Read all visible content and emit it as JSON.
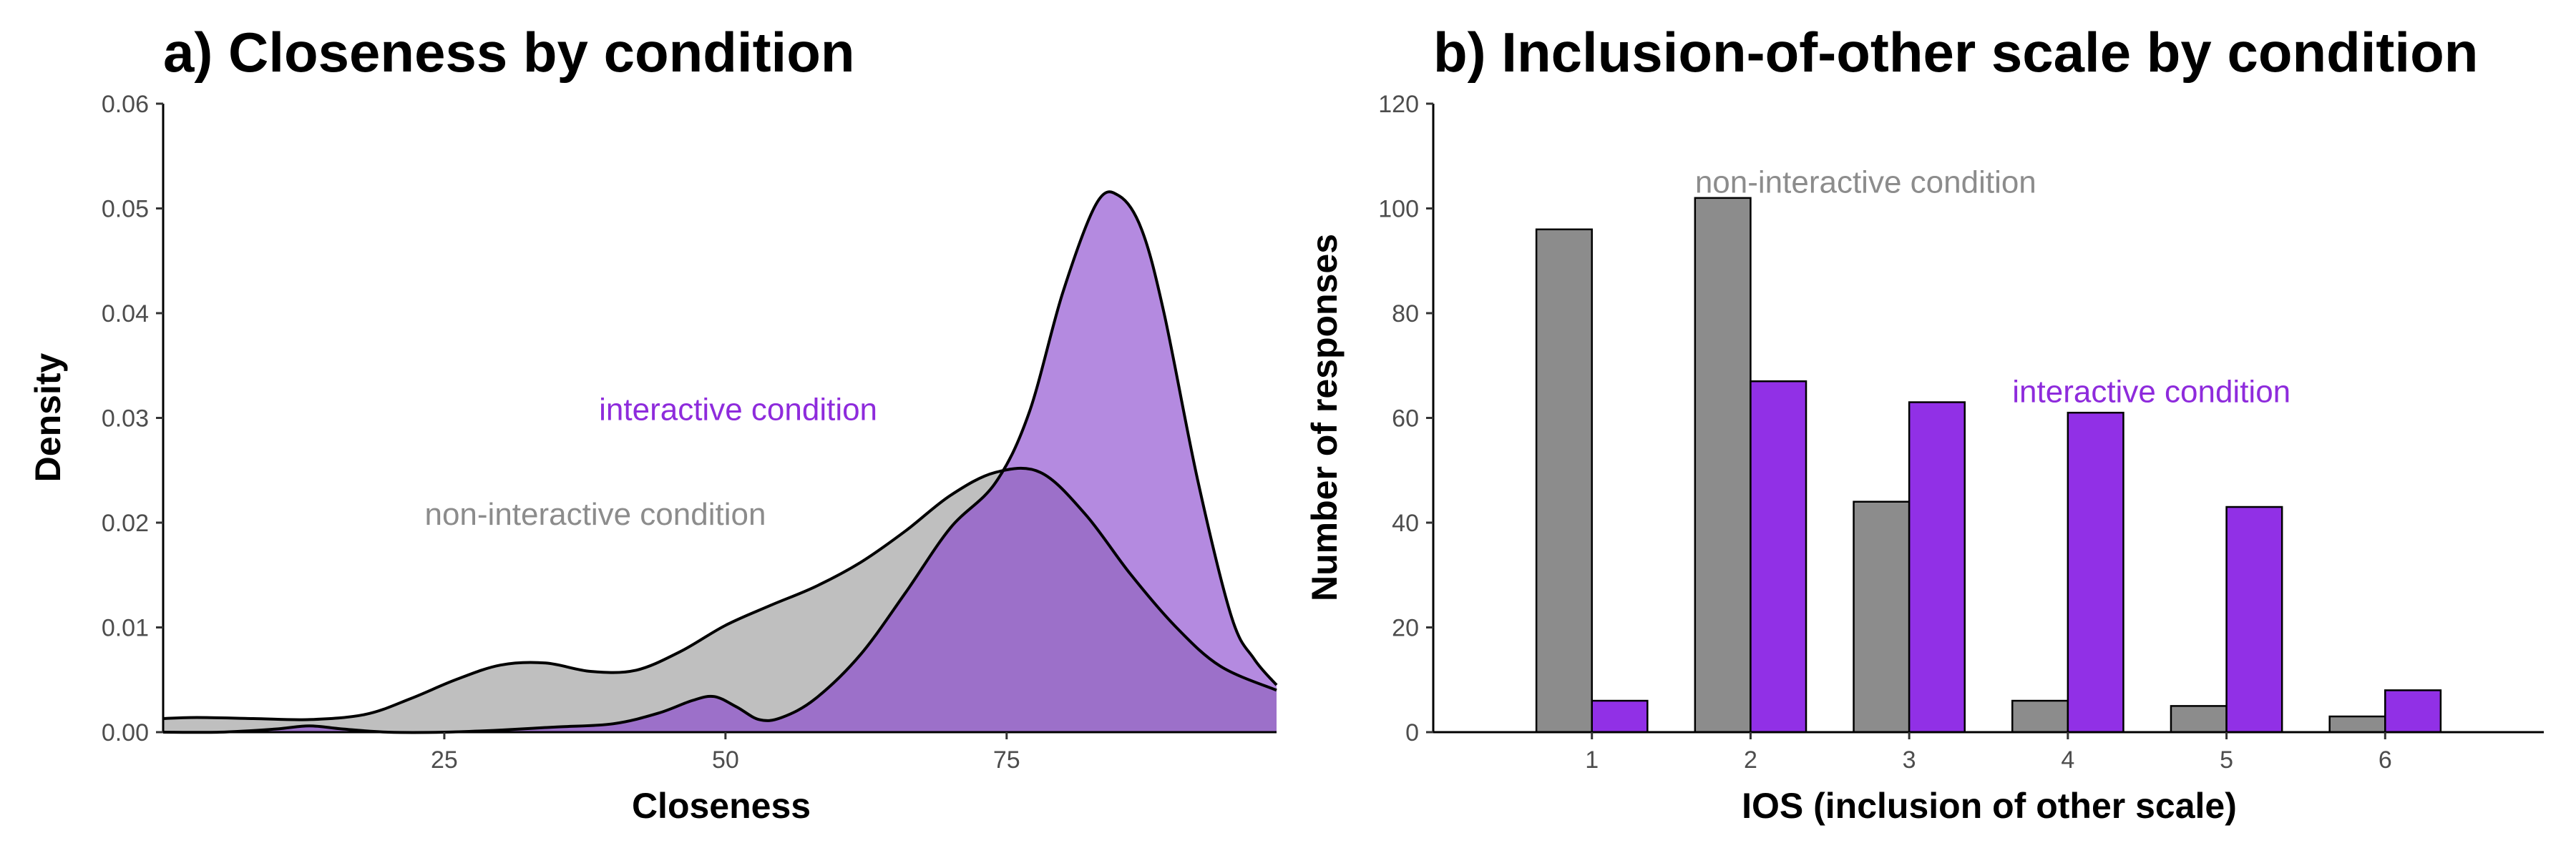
{
  "colors": {
    "non_interactive": "#8c8c8c",
    "non_interactive_fill_density": "#bfbfbf",
    "non_interactive_label": "#8c8c8c",
    "interactive": "#9130e6",
    "interactive_fill_density": "#b48ae0",
    "overlap_fill": "#9c70c9",
    "interactive_label": "#8e2bdc"
  },
  "chart_data": [
    {
      "type": "area",
      "title": "a) Closeness by condition",
      "xlabel": "Closeness",
      "ylabel": "Density",
      "xlim": [
        0,
        99
      ],
      "ylim": [
        0,
        0.06
      ],
      "xticks": [
        "25",
        "50",
        "75"
      ],
      "xtick_values": [
        25,
        50,
        75
      ],
      "yticks": [
        "0.00",
        "0.01",
        "0.02",
        "0.03",
        "0.04",
        "0.05",
        "0.06"
      ],
      "ytick_values": [
        0,
        0.01,
        0.02,
        0.03,
        0.04,
        0.05,
        0.06
      ],
      "grid": false,
      "legend": "none",
      "annotations": [
        {
          "text": "interactive condition",
          "x": 63.5,
          "y": 0.0298,
          "series": "interactive"
        },
        {
          "text": "non-interactive condition",
          "x": 53.6,
          "y": 0.0198,
          "series": "non-interactive"
        }
      ],
      "series": [
        {
          "key": "non-interactive",
          "x": [
            0,
            3,
            8,
            13,
            18,
            22,
            26,
            30,
            34,
            38,
            42,
            46,
            50,
            54,
            58,
            62,
            66,
            70,
            74,
            78,
            82,
            86,
            90,
            94,
            99
          ],
          "y": [
            0.0013,
            0.0014,
            0.0013,
            0.0012,
            0.0017,
            0.0032,
            0.005,
            0.0064,
            0.0066,
            0.0058,
            0.0059,
            0.0077,
            0.0102,
            0.0121,
            0.0139,
            0.0162,
            0.0192,
            0.0226,
            0.0248,
            0.0248,
            0.0208,
            0.0151,
            0.0101,
            0.0063,
            0.004
          ]
        },
        {
          "key": "interactive",
          "x": [
            0,
            5,
            10,
            13,
            16,
            20,
            25,
            30,
            35,
            40,
            44,
            47,
            49,
            51,
            53,
            55,
            58,
            62,
            66,
            70,
            74,
            77,
            80,
            83,
            85,
            87,
            89,
            92,
            95,
            97,
            99
          ],
          "y": [
            0.0,
            0.0,
            0.0003,
            0.0006,
            0.0003,
            0.0,
            0.0,
            0.0002,
            0.0005,
            0.0008,
            0.0018,
            0.003,
            0.0034,
            0.0024,
            0.0012,
            0.0014,
            0.0032,
            0.0074,
            0.0133,
            0.0195,
            0.0238,
            0.0305,
            0.042,
            0.0505,
            0.0512,
            0.048,
            0.04,
            0.024,
            0.011,
            0.007,
            0.0045
          ]
        }
      ]
    },
    {
      "type": "bar",
      "title": "b) Inclusion-of-other scale by condition",
      "xlabel": "IOS (inclusion of other scale)",
      "ylabel": "Number of responses",
      "categories": [
        "1",
        "2",
        "3",
        "4",
        "5",
        "6"
      ],
      "xlim": [
        -0.0,
        7.0
      ],
      "ylim": [
        0,
        120
      ],
      "yticks": [
        "0",
        "20",
        "40",
        "60",
        "80",
        "100",
        "120"
      ],
      "ytick_values": [
        0,
        20,
        40,
        60,
        80,
        100,
        120
      ],
      "grid": false,
      "legend": "none",
      "annotations": [
        {
          "text": "non-interactive condition",
          "x": 1.65,
          "y": 103,
          "series": "non-interactive"
        },
        {
          "text": "interactive condition",
          "x": 3.0,
          "y": 63,
          "series": "interactive"
        }
      ],
      "series": [
        {
          "key": "non-interactive",
          "values": [
            96,
            102,
            44,
            6,
            5,
            3
          ]
        },
        {
          "key": "interactive",
          "values": [
            6,
            67,
            63,
            61,
            43,
            8
          ]
        }
      ]
    }
  ]
}
